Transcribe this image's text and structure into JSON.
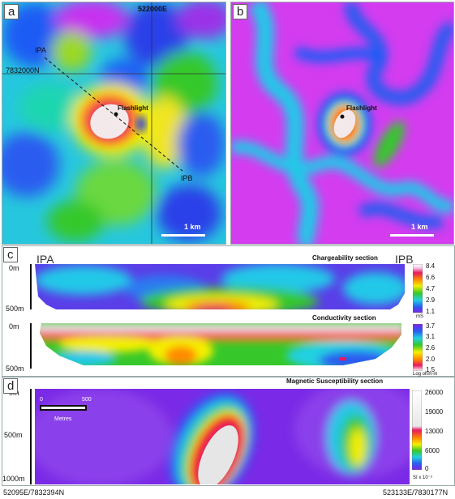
{
  "panel_a": {
    "label": "a",
    "easting": "522000E",
    "northing": "7832000N",
    "line_start": "IPA",
    "line_end": "IPB",
    "target": "Flashlight",
    "scale": "1 km"
  },
  "panel_b": {
    "label": "b",
    "target": "Flashlight",
    "scale": "1 km"
  },
  "panel_c": {
    "label": "c",
    "left_end": "IPA",
    "right_end": "IPB",
    "chargeability_title": "Chargeability section",
    "conductivity_title": "Conductivity section",
    "depth_top_1": "0m",
    "depth_bottom_1": "500m",
    "depth_top_2": "0m",
    "depth_bottom_2": "500m",
    "chargeability_ticks": [
      "8.4",
      "6.6",
      "4.7",
      "2.9",
      "1.1"
    ],
    "chargeability_unit": "mS",
    "conductivity_ticks": [
      "3.7",
      "3.1",
      "2.6",
      "2.0",
      "1.5"
    ],
    "conductivity_unit": "Log ohm-m"
  },
  "panel_d": {
    "label": "d",
    "title": "Magnetic Susceptibility section",
    "depth_0": "0m",
    "depth_500": "500m",
    "depth_1000": "1000m",
    "scale_0": "0",
    "scale_500": "500",
    "scale_unit": "Metres",
    "ticks": [
      "26000",
      "19000",
      "13000",
      "6000",
      "0"
    ],
    "unit": "SI x 10⁻⁵"
  },
  "footer": {
    "left_coord": "52095E/7832394N",
    "right_coord": "523133E/7830177N"
  }
}
